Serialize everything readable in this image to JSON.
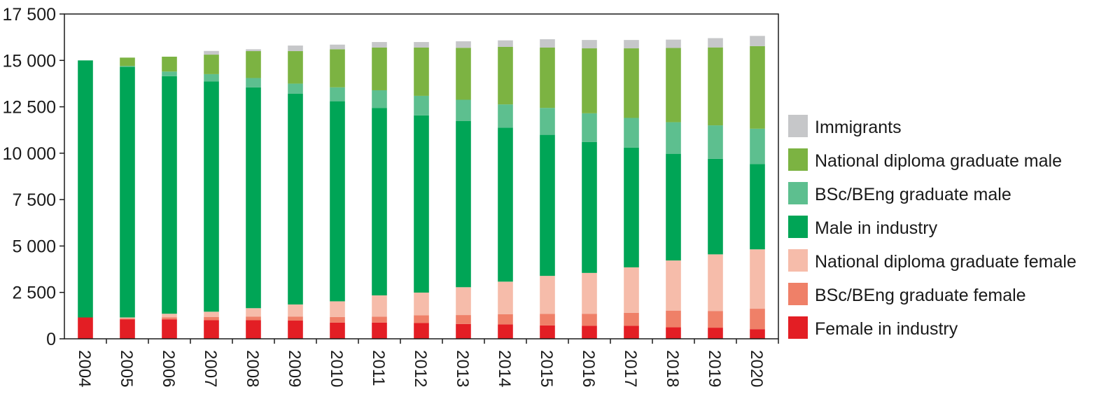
{
  "chart_data": {
    "type": "bar",
    "stacked": true,
    "orientation": "vertical",
    "categories": [
      "2004",
      "2005",
      "2006",
      "2007",
      "2008",
      "2009",
      "2010",
      "2011",
      "2012",
      "2013",
      "2014",
      "2015",
      "2016",
      "2017",
      "2018",
      "2019",
      "2020"
    ],
    "ylim": [
      0,
      17500
    ],
    "yticks": [
      0,
      2500,
      5000,
      7500,
      10000,
      12500,
      15000,
      17500
    ],
    "ytick_labels": [
      "0",
      "2 500",
      "5 000",
      "7 500",
      "10 000",
      "12 500",
      "15 000",
      "17 500"
    ],
    "xlabel": "",
    "ylabel": "",
    "grid": false,
    "legend_position": "right",
    "series": [
      {
        "name": "Female in industry",
        "color": "#e31e24",
        "values": [
          1150,
          1050,
          1050,
          1000,
          1000,
          980,
          870,
          870,
          850,
          800,
          780,
          720,
          700,
          700,
          620,
          600,
          520
        ]
      },
      {
        "name": "BSc/BEng graduate female",
        "color": "#ef8068",
        "values": [
          0,
          50,
          100,
          180,
          200,
          220,
          300,
          320,
          420,
          480,
          550,
          620,
          650,
          700,
          900,
          900,
          1100
        ]
      },
      {
        "name": "National diploma graduate female",
        "color": "#f6bcaa",
        "values": [
          0,
          50,
          200,
          280,
          450,
          650,
          850,
          1150,
          1220,
          1500,
          1750,
          2050,
          2200,
          2450,
          2700,
          3050,
          3200
        ]
      },
      {
        "name": "Male in industry",
        "color": "#00a556",
        "values": [
          13850,
          13500,
          12800,
          12400,
          11900,
          11350,
          10780,
          10100,
          9550,
          8950,
          8300,
          7600,
          7050,
          6450,
          5750,
          5150,
          4600
        ]
      },
      {
        "name": "BSc/BEng graduate male",
        "color": "#5dbf8f",
        "values": [
          0,
          50,
          250,
          400,
          500,
          550,
          750,
          950,
          1050,
          1150,
          1250,
          1450,
          1550,
          1600,
          1700,
          1800,
          1900
        ]
      },
      {
        "name": "National diploma graduate male",
        "color": "#7cb342",
        "values": [
          0,
          450,
          800,
          1050,
          1450,
          1750,
          2050,
          2300,
          2600,
          2800,
          3100,
          3250,
          3500,
          3750,
          4000,
          4200,
          4450
        ]
      },
      {
        "name": "Immigrants",
        "color": "#c6c7c9",
        "values": [
          0,
          0,
          0,
          200,
          100,
          300,
          250,
          300,
          300,
          350,
          350,
          450,
          450,
          450,
          450,
          500,
          550
        ]
      }
    ]
  }
}
